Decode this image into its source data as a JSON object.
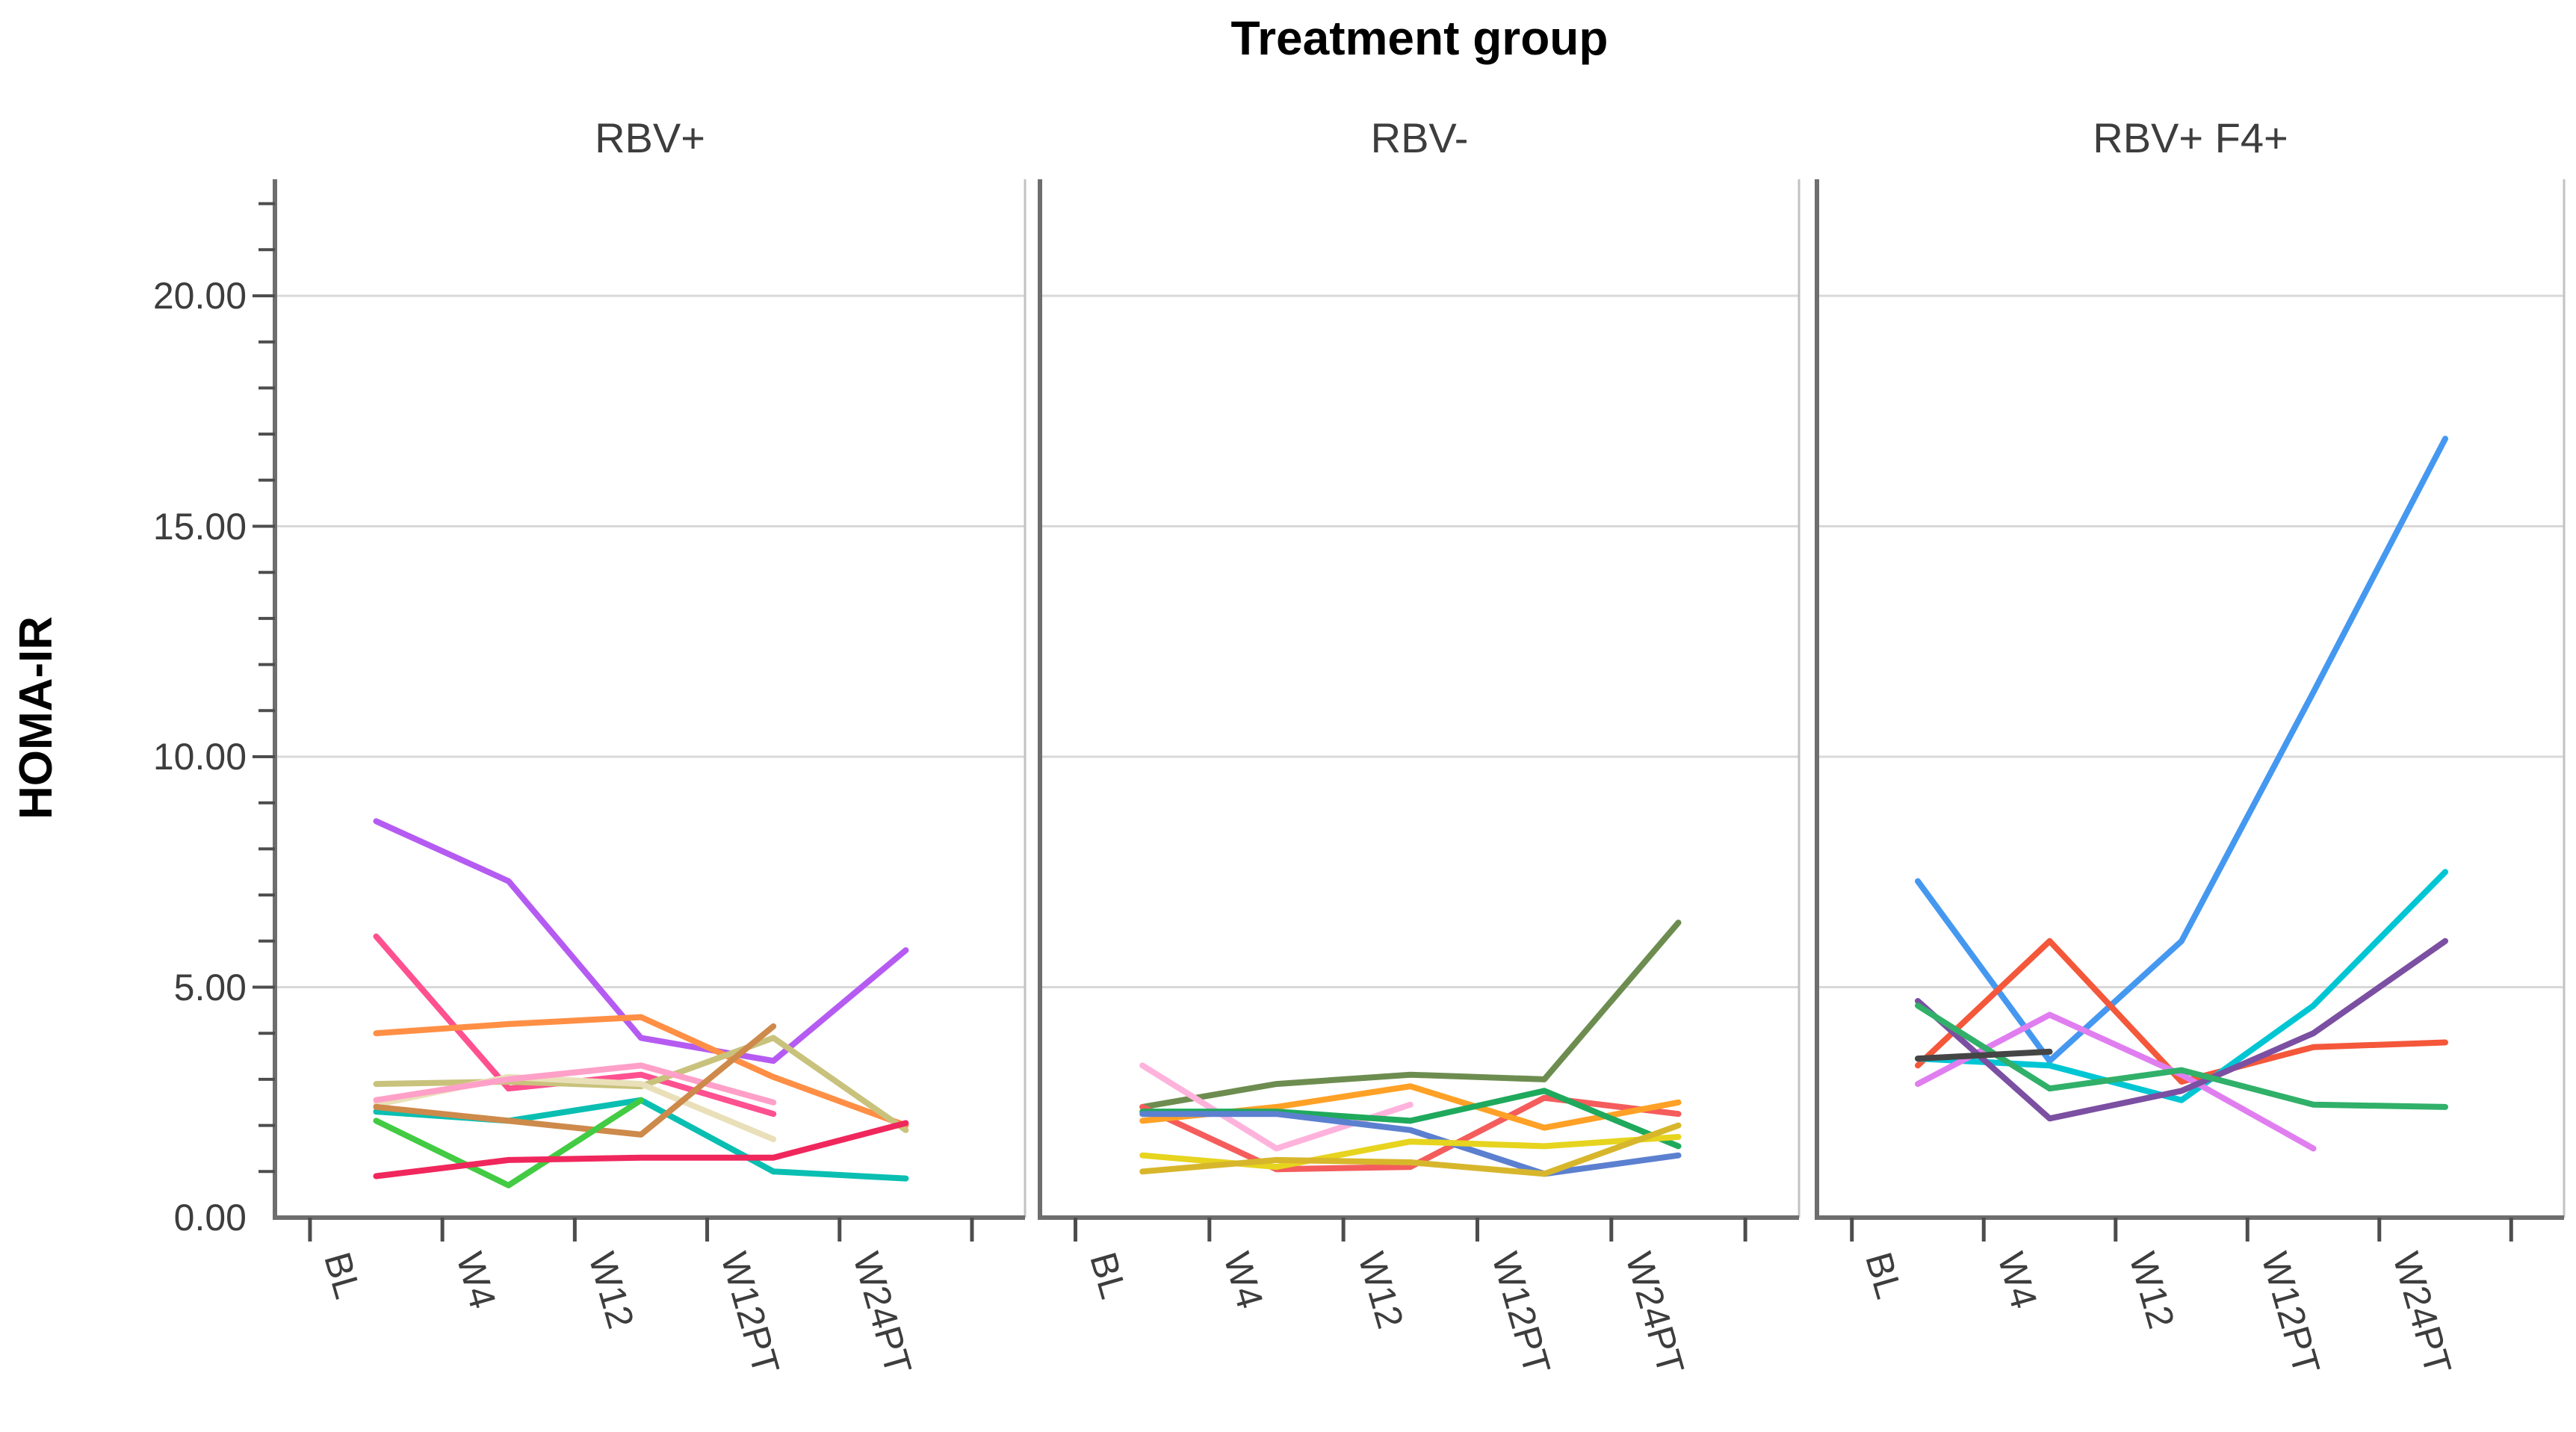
{
  "title": "Treatment group",
  "y_axis": {
    "label": "HOMA-IR",
    "tick_labels": [
      "20.00",
      "15.00",
      "10.00",
      "5.00",
      "0.00"
    ],
    "tick_values": [
      20,
      15,
      10,
      5,
      0
    ],
    "minor_tick_step": 1,
    "range_max": 22.5
  },
  "x_axis": {
    "categories": [
      "BL",
      "W4",
      "W12",
      "W12PT",
      "W24PT"
    ]
  },
  "colors": {
    "gridline": "#d8d8d8",
    "panel_border_dark": "#6e6e6e",
    "panel_border_light": "#c2c2c2",
    "tick": "#4d4d4d",
    "text": "#3d3d3d",
    "title_text": "#000000"
  },
  "chart_data": {
    "type": "line",
    "title": "Treatment group",
    "xlabel": "",
    "ylabel": "HOMA-IR",
    "ylim": [
      0,
      22.5
    ],
    "grid": true,
    "gridline_values": [
      5,
      10,
      15,
      20
    ],
    "categories": [
      "BL",
      "W4",
      "W12",
      "W12PT",
      "W24PT"
    ],
    "panels": [
      {
        "label": "RBV+",
        "series": [
          {
            "id": "rbvplus-patient-1",
            "color": "#b55bf2",
            "values": [
              8.6,
              7.3,
              3.9,
              3.4,
              5.8
            ]
          },
          {
            "id": "rbvplus-patient-2",
            "color": "#ff5090",
            "values": [
              6.1,
              2.8,
              3.1,
              2.25,
              null
            ]
          },
          {
            "id": "rbvplus-patient-3",
            "color": "#ff8f45",
            "values": [
              4.0,
              4.2,
              4.35,
              3.05,
              2.0
            ]
          },
          {
            "id": "rbvplus-patient-4",
            "color": "#c9c27c",
            "values": [
              2.9,
              2.95,
              2.85,
              3.9,
              1.9
            ]
          },
          {
            "id": "rbvplus-patient-5",
            "color": "#e9e0ba",
            "values": [
              2.45,
              3.05,
              2.9,
              1.7,
              null
            ]
          },
          {
            "id": "rbvplus-patient-6",
            "color": "#ffa0c8",
            "values": [
              2.55,
              3.0,
              3.3,
              2.5,
              null
            ]
          },
          {
            "id": "rbvplus-patient-7",
            "color": "#0abfb2",
            "values": [
              2.3,
              2.1,
              2.55,
              1.0,
              0.85
            ]
          },
          {
            "id": "rbvplus-patient-8",
            "color": "#cd8a4b",
            "values": [
              2.4,
              2.1,
              1.8,
              4.15,
              null
            ]
          },
          {
            "id": "rbvplus-patient-9",
            "color": "#43cb43",
            "values": [
              2.1,
              0.7,
              2.55,
              null,
              null
            ]
          },
          {
            "id": "rbvplus-patient-10",
            "color": "#f0275c",
            "values": [
              0.9,
              1.25,
              1.3,
              1.3,
              2.05
            ]
          }
        ]
      },
      {
        "label": "RBV-",
        "series": [
          {
            "id": "rbvminus-patient-1",
            "color": "#6d8d50",
            "values": [
              2.4,
              2.9,
              3.1,
              3.0,
              6.4
            ]
          },
          {
            "id": "rbvminus-patient-2",
            "color": "#ffb3dc",
            "values": [
              3.3,
              1.5,
              2.45,
              null,
              null
            ]
          },
          {
            "id": "rbvminus-patient-3",
            "color": "#f55c5c",
            "values": [
              2.4,
              1.05,
              1.1,
              2.6,
              2.25
            ]
          },
          {
            "id": "rbvminus-patient-4",
            "color": "#ffa126",
            "values": [
              2.1,
              2.4,
              2.85,
              1.95,
              2.5
            ]
          },
          {
            "id": "rbvminus-patient-5",
            "color": "#1fa95c",
            "values": [
              2.3,
              2.3,
              2.1,
              2.75,
              1.55
            ]
          },
          {
            "id": "rbvminus-patient-6",
            "color": "#5c80d0",
            "values": [
              2.25,
              2.25,
              1.9,
              0.95,
              1.35
            ]
          },
          {
            "id": "rbvminus-patient-7",
            "color": "#e6d41e",
            "values": [
              1.35,
              1.1,
              1.65,
              1.55,
              1.75
            ]
          },
          {
            "id": "rbvminus-patient-8",
            "color": "#d7b62c",
            "values": [
              1.0,
              1.25,
              1.2,
              0.95,
              2.0
            ]
          }
        ]
      },
      {
        "label": "RBV+ F4+",
        "series": [
          {
            "id": "rbvf4-patient-1",
            "color": "#4598f0",
            "values": [
              7.3,
              3.4,
              6.0,
              11.4,
              16.9
            ]
          },
          {
            "id": "rbvf4-patient-2",
            "color": "#f4573a",
            "values": [
              3.3,
              6.0,
              2.95,
              3.7,
              3.8
            ]
          },
          {
            "id": "rbvf4-patient-3",
            "color": "#00c6d4",
            "values": [
              3.45,
              3.3,
              2.55,
              4.6,
              7.5
            ]
          },
          {
            "id": "rbvf4-patient-4",
            "color": "#e07ef0",
            "values": [
              2.9,
              4.4,
              3.1,
              1.5,
              null
            ]
          },
          {
            "id": "rbvf4-patient-5",
            "color": "#7b4fa2",
            "values": [
              4.7,
              2.15,
              2.75,
              4.0,
              6.0
            ]
          },
          {
            "id": "rbvf4-patient-6",
            "color": "#30b069",
            "values": [
              4.6,
              2.8,
              3.2,
              2.45,
              2.4
            ]
          },
          {
            "id": "rbvf4-patient-7",
            "color": "#454545",
            "values": [
              3.45,
              3.6,
              null,
              null,
              null
            ]
          }
        ]
      }
    ]
  }
}
